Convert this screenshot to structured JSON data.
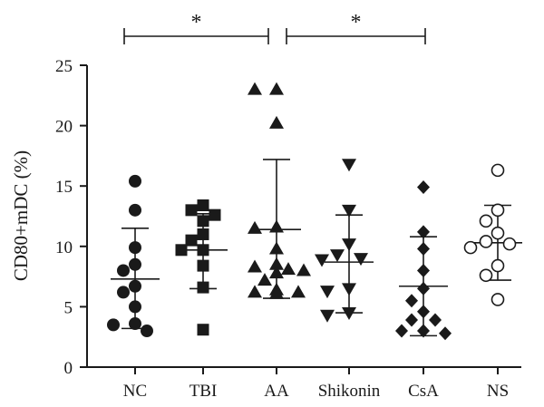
{
  "chart_data": {
    "type": "scatter",
    "title": "",
    "xlabel": "",
    "ylabel": "CD80+mDC (%)",
    "ylim": [
      0,
      25
    ],
    "yticks": [
      "0",
      "5",
      "10",
      "15",
      "20",
      "25"
    ],
    "grid": false,
    "categories": [
      "NC",
      "TBI",
      "AA",
      "Shikonin",
      "CsA",
      "NS"
    ],
    "groups": [
      {
        "category": "NC",
        "marker": "circle-filled",
        "mean": 7.3,
        "upper": 11.5,
        "lower": 3.2,
        "points": [
          15.4,
          13.0,
          9.9,
          8.5,
          8.0,
          6.7,
          6.2,
          5.0,
          3.6,
          3.5,
          3.0
        ]
      },
      {
        "category": "TBI",
        "marker": "square-filled",
        "mean": 9.7,
        "upper": 12.7,
        "lower": 6.5,
        "points": [
          13.4,
          13.0,
          12.6,
          12.1,
          11.0,
          10.5,
          9.7,
          9.7,
          8.4,
          6.6,
          3.1
        ]
      },
      {
        "category": "AA",
        "marker": "triangle-up-filled",
        "mean": 11.4,
        "upper": 17.2,
        "lower": 5.7,
        "points": [
          23.0,
          23.0,
          20.2,
          11.6,
          11.5,
          9.8,
          8.5,
          8.3,
          8.1,
          8.0,
          7.8,
          7.2,
          6.4,
          6.2,
          6.2,
          6.1
        ]
      },
      {
        "category": "Shikonin",
        "marker": "triangle-down-filled",
        "mean": 8.7,
        "upper": 12.6,
        "lower": 4.5,
        "points": [
          16.8,
          13.0,
          10.2,
          9.3,
          9.0,
          8.9,
          6.5,
          6.3,
          4.5,
          4.3
        ]
      },
      {
        "category": "CsA",
        "marker": "diamond-filled",
        "mean": 6.7,
        "upper": 10.8,
        "lower": 2.6,
        "points": [
          14.9,
          11.2,
          9.8,
          8.0,
          6.5,
          5.5,
          4.6,
          3.9,
          3.9,
          3.0,
          3.0,
          2.8
        ]
      },
      {
        "category": "NS",
        "marker": "circle-open",
        "mean": 10.3,
        "upper": 13.4,
        "lower": 7.2,
        "points": [
          16.3,
          13.0,
          12.1,
          11.1,
          10.4,
          10.2,
          9.9,
          8.4,
          7.6,
          5.6
        ]
      }
    ],
    "annotations": [
      {
        "text": "*",
        "from": "NC",
        "to": "AA"
      },
      {
        "text": "*",
        "from": "AA",
        "to": "CsA"
      }
    ]
  }
}
